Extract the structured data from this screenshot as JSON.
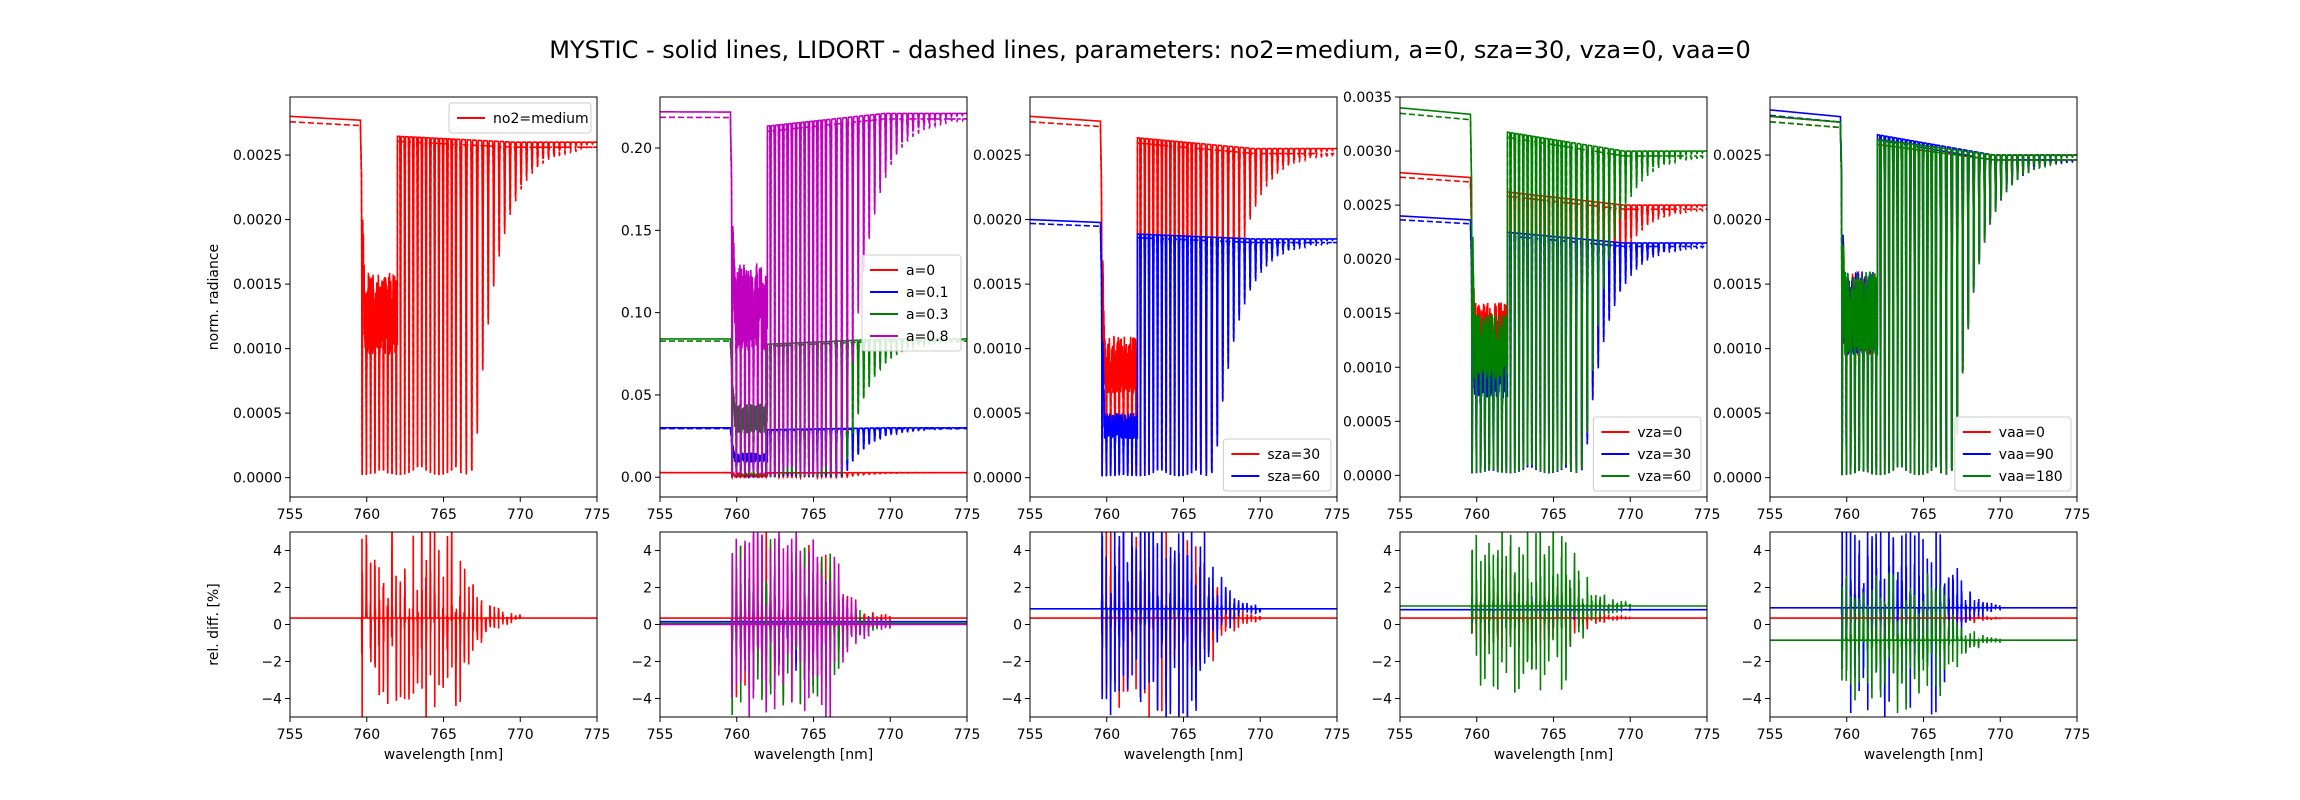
{
  "suptitle": "MYSTIC - solid lines,  LIDORT - dashed lines,  parameters: no2=medium, a=0, sza=30, vza=0, vaa=0",
  "colors": {
    "red": "#ff0000",
    "blue": "#0000ff",
    "green": "#008000",
    "magenta": "#bf00bf",
    "axes": "#000000",
    "background": "#ffffff"
  },
  "chart_data": [
    {
      "id": "rad-no2",
      "type": "line",
      "panel": 0,
      "row": "top",
      "xlabel": "",
      "ylabel": "norm. radiance",
      "xlim": [
        755,
        775
      ],
      "ylim": [
        -0.00015,
        0.00295
      ],
      "xticks": [
        "755",
        "760",
        "765",
        "770",
        "775"
      ],
      "yticks": [
        "0.0000",
        "0.0005",
        "0.0010",
        "0.0015",
        "0.0020",
        "0.0025"
      ],
      "ytick_values": [
        0,
        0.0005,
        0.001,
        0.0015,
        0.002,
        0.0025
      ],
      "legend": {
        "position": "top-right",
        "entries": [
          "no2=medium"
        ]
      },
      "series": [
        {
          "name": "no2=medium",
          "color": "#ff0000",
          "continuum": 0.0026,
          "left_level": 0.0028,
          "mid_level": 0.0016,
          "min_level": 2e-05
        }
      ]
    },
    {
      "id": "rad-albedo",
      "type": "line",
      "panel": 1,
      "row": "top",
      "xlabel": "",
      "ylabel": "",
      "xlim": [
        755,
        775
      ],
      "ylim": [
        -0.012,
        0.231
      ],
      "xticks": [
        "755",
        "760",
        "765",
        "770",
        "775"
      ],
      "yticks": [
        "0.00",
        "0.05",
        "0.10",
        "0.15",
        "0.20"
      ],
      "ytick_values": [
        0,
        0.05,
        0.1,
        0.15,
        0.2
      ],
      "legend": {
        "position": "center-right",
        "entries": [
          "a=0",
          "a=0.1",
          "a=0.3",
          "a=0.8"
        ]
      },
      "series": [
        {
          "name": "a=0",
          "color": "#ff0000",
          "continuum": 0.0028,
          "left_level": 0.0028,
          "mid_level": 0.0016,
          "min_level": 2e-05
        },
        {
          "name": "a=0.1",
          "color": "#0000ff",
          "continuum": 0.03,
          "left_level": 0.03,
          "mid_level": 0.015,
          "min_level": 0.0002
        },
        {
          "name": "a=0.3",
          "color": "#008000",
          "continuum": 0.084,
          "left_level": 0.084,
          "mid_level": 0.045,
          "min_level": 0.0005
        },
        {
          "name": "a=0.8",
          "color": "#bf00bf",
          "continuum": 0.221,
          "left_level": 0.222,
          "mid_level": 0.13,
          "min_level": 0.0012
        }
      ]
    },
    {
      "id": "rad-sza",
      "type": "line",
      "panel": 2,
      "row": "top",
      "xlabel": "",
      "ylabel": "",
      "xlim": [
        755,
        775
      ],
      "ylim": [
        -0.00015,
        0.00295
      ],
      "xticks": [
        "755",
        "760",
        "765",
        "770",
        "775"
      ],
      "yticks": [
        "0.0000",
        "0.0005",
        "0.0010",
        "0.0015",
        "0.0020",
        "0.0025"
      ],
      "ytick_values": [
        0,
        0.0005,
        0.001,
        0.0015,
        0.002,
        0.0025
      ],
      "legend": {
        "position": "bottom-right",
        "entries": [
          "sza=30",
          "sza=60"
        ]
      },
      "series": [
        {
          "name": "sza=30",
          "color": "#ff0000",
          "continuum": 0.00255,
          "left_level": 0.0028,
          "mid_level": 0.0011,
          "min_level": 2e-05
        },
        {
          "name": "sza=60",
          "color": "#0000ff",
          "continuum": 0.00185,
          "left_level": 0.002,
          "mid_level": 0.0005,
          "min_level": 1e-05
        }
      ]
    },
    {
      "id": "rad-vza",
      "type": "line",
      "panel": 3,
      "row": "top",
      "xlabel": "",
      "ylabel": "",
      "xlim": [
        755,
        775
      ],
      "ylim": [
        -0.0002,
        0.0035
      ],
      "xticks": [
        "755",
        "760",
        "765",
        "770",
        "775"
      ],
      "yticks": [
        "0.0000",
        "0.0005",
        "0.0010",
        "0.0015",
        "0.0020",
        "0.0025",
        "0.0030",
        "0.0035"
      ],
      "ytick_values": [
        0,
        0.0005,
        0.001,
        0.0015,
        0.002,
        0.0025,
        0.003,
        0.0035
      ],
      "legend": {
        "position": "bottom-right",
        "entries": [
          "vza=0",
          "vza=30",
          "vza=60"
        ]
      },
      "series": [
        {
          "name": "vza=0",
          "color": "#ff0000",
          "continuum": 0.0025,
          "left_level": 0.0028,
          "mid_level": 0.0016,
          "min_level": 2e-05
        },
        {
          "name": "vza=30",
          "color": "#0000ff",
          "continuum": 0.00215,
          "left_level": 0.0024,
          "mid_level": 0.0012,
          "min_level": 2e-05
        },
        {
          "name": "vza=60",
          "color": "#008000",
          "continuum": 0.003,
          "left_level": 0.0034,
          "mid_level": 0.0015,
          "min_level": 2e-05
        }
      ]
    },
    {
      "id": "rad-vaa",
      "type": "line",
      "panel": 4,
      "row": "top",
      "xlabel": "",
      "ylabel": "",
      "xlim": [
        755,
        775
      ],
      "ylim": [
        -0.00015,
        0.00295
      ],
      "xticks": [
        "755",
        "760",
        "765",
        "770",
        "775"
      ],
      "yticks": [
        "0.0000",
        "0.0005",
        "0.0010",
        "0.0015",
        "0.0020",
        "0.0025"
      ],
      "ytick_values": [
        0,
        0.0005,
        0.001,
        0.0015,
        0.002,
        0.0025
      ],
      "legend": {
        "position": "bottom-right",
        "entries": [
          "vaa=0",
          "vaa=90",
          "vaa=180"
        ]
      },
      "series": [
        {
          "name": "vaa=0",
          "color": "#ff0000",
          "continuum": 0.0025,
          "left_level": 0.0028,
          "mid_level": 0.0016,
          "min_level": 2e-05
        },
        {
          "name": "vaa=90",
          "color": "#0000ff",
          "continuum": 0.0025,
          "left_level": 0.00285,
          "mid_level": 0.0016,
          "min_level": 2e-05
        },
        {
          "name": "vaa=180",
          "color": "#008000",
          "continuum": 0.0025,
          "left_level": 0.0028,
          "mid_level": 0.0016,
          "min_level": 2e-05
        }
      ]
    },
    {
      "id": "diff-no2",
      "type": "line",
      "panel": 0,
      "row": "bottom",
      "xlabel": "wavelength [nm]",
      "ylabel": "rel. diff. [%]",
      "xlim": [
        755,
        775
      ],
      "ylim": [
        -5,
        5
      ],
      "xticks": [
        "755",
        "760",
        "765",
        "770",
        "775"
      ],
      "yticks": [
        "−4",
        "−2",
        "0",
        "2",
        "4"
      ],
      "ytick_values": [
        -4,
        -2,
        0,
        2,
        4
      ],
      "series": [
        {
          "name": "no2=medium",
          "color": "#ff0000",
          "baseline": 0.35,
          "amplitude": 6
        }
      ]
    },
    {
      "id": "diff-albedo",
      "type": "line",
      "panel": 1,
      "row": "bottom",
      "xlabel": "wavelength [nm]",
      "ylabel": "",
      "xlim": [
        755,
        775
      ],
      "ylim": [
        -5,
        5
      ],
      "xticks": [
        "755",
        "760",
        "765",
        "770",
        "775"
      ],
      "yticks": [
        "−4",
        "−2",
        "0",
        "2",
        "4"
      ],
      "ytick_values": [
        -4,
        -2,
        0,
        2,
        4
      ],
      "series": [
        {
          "name": "a=0",
          "color": "#ff0000",
          "baseline": 0.35,
          "amplitude": 5
        },
        {
          "name": "a=0.1",
          "color": "#0000ff",
          "baseline": 0.15,
          "amplitude": 3
        },
        {
          "name": "a=0.3",
          "color": "#008000",
          "baseline": 0.05,
          "amplitude": 5
        },
        {
          "name": "a=0.8",
          "color": "#bf00bf",
          "baseline": 0.0,
          "amplitude": 6
        }
      ]
    },
    {
      "id": "diff-sza",
      "type": "line",
      "panel": 2,
      "row": "bottom",
      "xlabel": "wavelength [nm]",
      "ylabel": "",
      "xlim": [
        755,
        775
      ],
      "ylim": [
        -5,
        5
      ],
      "xticks": [
        "755",
        "760",
        "765",
        "770",
        "775"
      ],
      "yticks": [
        "−4",
        "−2",
        "0",
        "2",
        "4"
      ],
      "ytick_values": [
        -4,
        -2,
        0,
        2,
        4
      ],
      "series": [
        {
          "name": "sza=30",
          "color": "#ff0000",
          "baseline": 0.35,
          "amplitude": 6
        },
        {
          "name": "sza=60",
          "color": "#0000ff",
          "baseline": 0.85,
          "amplitude": 7
        }
      ]
    },
    {
      "id": "diff-vza",
      "type": "line",
      "panel": 3,
      "row": "bottom",
      "xlabel": "wavelength [nm]",
      "ylabel": "",
      "xlim": [
        755,
        775
      ],
      "ylim": [
        -5,
        5
      ],
      "xticks": [
        "755",
        "760",
        "765",
        "770",
        "775"
      ],
      "yticks": [
        "−4",
        "−2",
        "0",
        "2",
        "4"
      ],
      "ytick_values": [
        -4,
        -2,
        0,
        2,
        4
      ],
      "series": [
        {
          "name": "vza=0",
          "color": "#ff0000",
          "baseline": 0.35,
          "amplitude": 2
        },
        {
          "name": "vza=30",
          "color": "#0000ff",
          "baseline": 0.8,
          "amplitude": 1
        },
        {
          "name": "vza=60",
          "color": "#008000",
          "baseline": 1.0,
          "amplitude": 5
        }
      ]
    },
    {
      "id": "diff-vaa",
      "type": "line",
      "panel": 4,
      "row": "bottom",
      "xlabel": "wavelength [nm]",
      "ylabel": "",
      "xlim": [
        755,
        775
      ],
      "ylim": [
        -5,
        5
      ],
      "xticks": [
        "755",
        "760",
        "765",
        "770",
        "775"
      ],
      "yticks": [
        "−4",
        "−2",
        "0",
        "2",
        "4"
      ],
      "ytick_values": [
        -4,
        -2,
        0,
        2,
        4
      ],
      "series": [
        {
          "name": "vaa=0",
          "color": "#ff0000",
          "baseline": 0.35,
          "amplitude": 2
        },
        {
          "name": "vaa=90",
          "color": "#0000ff",
          "baseline": 0.9,
          "amplitude": 6
        },
        {
          "name": "vaa=180",
          "color": "#008000",
          "baseline": -0.85,
          "amplitude": 4
        }
      ]
    }
  ]
}
